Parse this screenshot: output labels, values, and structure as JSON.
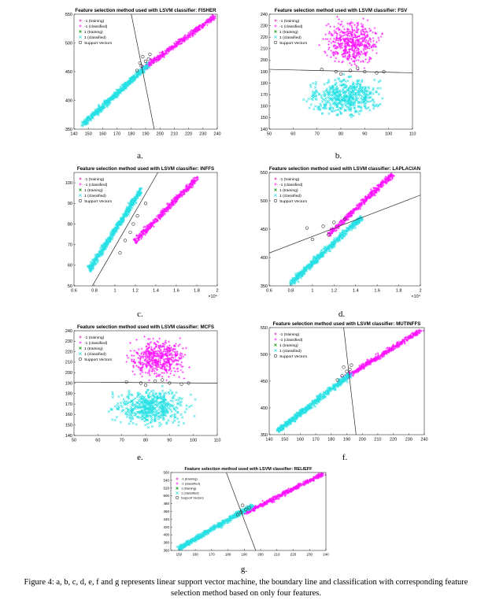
{
  "colors": {
    "train_neg": "#d61aa8",
    "class_neg": "#ff14ff",
    "train_pos": "#2ea82e",
    "class_pos": "#26e0e4",
    "boundary": "#2a2a2a",
    "support_vector": "#333333"
  },
  "chart_data": [
    {
      "id": "a",
      "letter": "a.",
      "type": "scatter",
      "title": "Feature selection method used with LSVM classifier: FISHER",
      "xlim": [
        140,
        240
      ],
      "ylim": [
        350,
        550
      ],
      "xticks": [
        140,
        150,
        160,
        170,
        180,
        190,
        200,
        210,
        220,
        230,
        240
      ],
      "yticks": [
        350,
        400,
        450,
        500,
        550
      ],
      "legend": [
        "-1 (training)",
        "-1 (classified)",
        "1 (training)",
        "1 (classified)",
        "Support Vectors"
      ],
      "clusters": [
        {
          "cls": "neg",
          "kind": "line",
          "x": [
            188,
            238
          ],
          "y": [
            455,
            545
          ]
        },
        {
          "cls": "pos",
          "kind": "line",
          "x": [
            146,
            192
          ],
          "y": [
            358,
            462
          ]
        }
      ],
      "boundary": [
        [
          180,
          550
        ],
        [
          196,
          350
        ]
      ],
      "support_vectors": [
        [
          187,
          460
        ],
        [
          190,
          468
        ],
        [
          192,
          472
        ],
        [
          184,
          452
        ],
        [
          188,
          476
        ],
        [
          186,
          465
        ],
        [
          193,
          480
        ]
      ]
    },
    {
      "id": "b",
      "letter": "b.",
      "type": "scatter",
      "title": "Feature selection method used with LSVM classifier: FSV",
      "xlim": [
        50,
        110
      ],
      "ylim": [
        140,
        240
      ],
      "xticks": [
        50,
        60,
        70,
        80,
        90,
        100,
        110
      ],
      "yticks": [
        140,
        150,
        160,
        170,
        180,
        190,
        200,
        210,
        220,
        230,
        240
      ],
      "exp_label": "",
      "legend": [
        "-1 (training)",
        "-1 (classified)",
        "1 (training)",
        "1 (classified)",
        "Support Vectors"
      ],
      "clusters": [
        {
          "cls": "neg",
          "kind": "blob",
          "x": [
            70,
            100
          ],
          "y": [
            190,
            240
          ]
        },
        {
          "cls": "pos",
          "kind": "blob",
          "x": [
            62,
            102
          ],
          "y": [
            145,
            190
          ]
        }
      ],
      "boundary": [
        [
          50,
          192
        ],
        [
          110,
          189
        ]
      ],
      "support_vectors": [
        [
          72,
          192
        ],
        [
          78,
          190
        ],
        [
          84,
          191
        ],
        [
          90,
          190
        ],
        [
          95,
          189
        ],
        [
          80,
          188
        ],
        [
          87,
          193
        ],
        [
          98,
          190
        ]
      ]
    },
    {
      "id": "c",
      "letter": "c.",
      "type": "scatter",
      "title": "Feature selection method used with LSVM classifier: INFFS",
      "xlim": [
        0.6,
        2.0
      ],
      "ylim": [
        50,
        105
      ],
      "xticks": [
        0.6,
        0.8,
        1,
        1.2,
        1.4,
        1.6,
        1.8,
        2
      ],
      "yticks": [
        50,
        60,
        70,
        80,
        90,
        100
      ],
      "exp_label": "×10⁴",
      "legend": [
        "-1 (training)",
        "-1 (classified)",
        "1 (training)",
        "1 (classified)",
        "Support Vectors"
      ],
      "clusters": [
        {
          "cls": "neg",
          "kind": "line",
          "x": [
            1.2,
            1.8
          ],
          "y": [
            72,
            102
          ]
        },
        {
          "cls": "pos",
          "kind": "line",
          "x": [
            0.75,
            1.25
          ],
          "y": [
            58,
            96
          ]
        }
      ],
      "boundary": [
        [
          0.78,
          50
        ],
        [
          1.42,
          105
        ]
      ],
      "support_vectors": [
        [
          1.1,
          72
        ],
        [
          1.18,
          80
        ],
        [
          1.22,
          84
        ],
        [
          1.05,
          66
        ],
        [
          1.3,
          90
        ],
        [
          1.15,
          76
        ]
      ]
    },
    {
      "id": "d",
      "letter": "d.",
      "type": "scatter",
      "title": "Feature selection method used with LSVM classifier: LAPLACIAN",
      "xlim": [
        0.6,
        2.0
      ],
      "ylim": [
        350,
        550
      ],
      "xticks": [
        0.6,
        0.8,
        1,
        1.2,
        1.4,
        1.6,
        1.8,
        2
      ],
      "yticks": [
        350,
        400,
        450,
        500,
        550
      ],
      "exp_label": "×10⁴",
      "legend": [
        "-1 (training)",
        "-1 (classified)",
        "1 (training)",
        "1 (classified)",
        "Support Vectors"
      ],
      "clusters": [
        {
          "cls": "neg",
          "kind": "line",
          "x": [
            1.15,
            1.75
          ],
          "y": [
            440,
            548
          ]
        },
        {
          "cls": "pos",
          "kind": "line",
          "x": [
            0.8,
            1.45
          ],
          "y": [
            355,
            470
          ]
        }
      ],
      "boundary": [
        [
          0.6,
          408
        ],
        [
          2.0,
          510
        ]
      ],
      "support_vectors": [
        [
          0.95,
          452
        ],
        [
          1.1,
          455
        ],
        [
          1.2,
          462
        ],
        [
          1.3,
          468
        ],
        [
          1.0,
          432
        ],
        [
          1.15,
          440
        ]
      ]
    },
    {
      "id": "e",
      "letter": "e.",
      "type": "scatter",
      "title": "Feature selection method used with LSVM classifier: MCFS",
      "xlim": [
        50,
        110
      ],
      "ylim": [
        140,
        240
      ],
      "xticks": [
        50,
        60,
        70,
        80,
        90,
        100,
        110
      ],
      "yticks": [
        140,
        150,
        160,
        170,
        180,
        190,
        200,
        210,
        220,
        230,
        240
      ],
      "exp_label": "",
      "legend": [
        "-1 (training)",
        "-1 (classified)",
        "1 (training)",
        "1 (classified)",
        "Support Vectors"
      ],
      "clusters": [
        {
          "cls": "neg",
          "kind": "blob",
          "x": [
            70,
            100
          ],
          "y": [
            190,
            238
          ]
        },
        {
          "cls": "pos",
          "kind": "blob",
          "x": [
            62,
            102
          ],
          "y": [
            145,
            190
          ]
        }
      ],
      "boundary": [
        [
          50,
          191
        ],
        [
          110,
          190
        ]
      ],
      "support_vectors": [
        [
          72,
          191
        ],
        [
          78,
          190
        ],
        [
          84,
          192
        ],
        [
          90,
          190
        ],
        [
          95,
          189
        ],
        [
          80,
          188
        ],
        [
          87,
          193
        ],
        [
          98,
          190
        ]
      ]
    },
    {
      "id": "f",
      "letter": "f.",
      "type": "scatter",
      "title": "Feature selection method used with LSVM classifier: MUTINFFS",
      "xlim": [
        140,
        240
      ],
      "ylim": [
        350,
        550
      ],
      "xticks": [
        140,
        150,
        160,
        170,
        180,
        190,
        200,
        210,
        220,
        230,
        240
      ],
      "yticks": [
        350,
        400,
        450,
        500,
        550
      ],
      "exp_label": "",
      "legend": [
        "-1 (training)",
        "-1 (classified)",
        "1 (training)",
        "1 (classified)",
        "Support Vectors"
      ],
      "clusters": [
        {
          "cls": "neg",
          "kind": "line",
          "x": [
            188,
            238
          ],
          "y": [
            455,
            545
          ]
        },
        {
          "cls": "pos",
          "kind": "line",
          "x": [
            146,
            192
          ],
          "y": [
            358,
            462
          ]
        }
      ],
      "boundary": [
        [
          188,
          550
        ],
        [
          196,
          350
        ]
      ],
      "support_vectors": [
        [
          187,
          460
        ],
        [
          190,
          468
        ],
        [
          192,
          472
        ],
        [
          184,
          452
        ],
        [
          188,
          476
        ],
        [
          193,
          480
        ]
      ]
    },
    {
      "id": "g",
      "letter": "g.",
      "type": "scatter",
      "title": "Feature selection method used with LSVM classifier: RELIEFF",
      "xlim": [
        145,
        240
      ],
      "ylim": [
        360,
        560
      ],
      "xticks": [
        150,
        160,
        170,
        180,
        190,
        200,
        210,
        220,
        230,
        240
      ],
      "yticks": [
        360,
        380,
        400,
        420,
        440,
        460,
        480,
        500,
        520,
        540,
        560
      ],
      "exp_label": "",
      "legend": [
        "-1 (training)",
        "-1 (classified)",
        "1 (training)",
        "1 (classified)",
        "Support Vectors"
      ],
      "clusters": [
        {
          "cls": "neg",
          "kind": "line",
          "x": [
            190,
            238
          ],
          "y": [
            455,
            556
          ]
        },
        {
          "cls": "pos",
          "kind": "line",
          "x": [
            150,
            195
          ],
          "y": [
            365,
            475
          ]
        }
      ],
      "boundary": [
        [
          179,
          560
        ],
        [
          197,
          360
        ]
      ],
      "support_vectors": [
        [
          188,
          458
        ],
        [
          191,
          465
        ],
        [
          186,
          452
        ],
        [
          193,
          470
        ],
        [
          189,
          476
        ]
      ]
    }
  ],
  "caption": "Figure 4: a, b, c, d, e, f and g represents linear support vector machine, the boundary line and classification with corresponding feature selection method based on only four features."
}
